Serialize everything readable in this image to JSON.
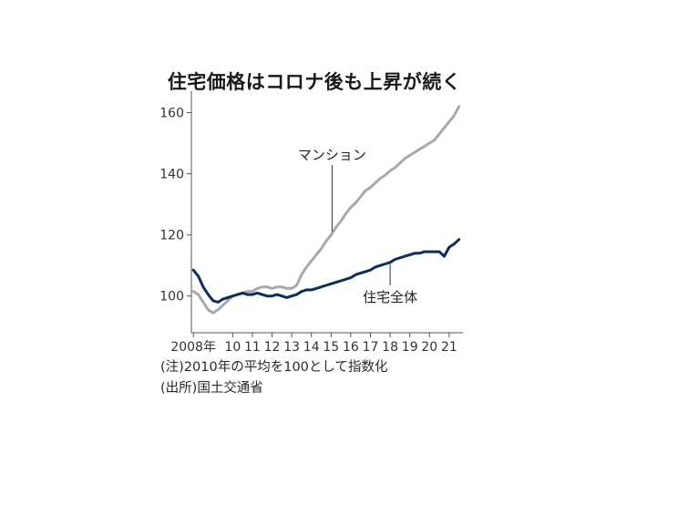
{
  "chart_data": {
    "type": "line",
    "title": "住宅価格はコロナ後も上昇が続く",
    "xlabel": "",
    "ylabel": "",
    "x_tick_labels": [
      "2008年",
      "10",
      "11",
      "12",
      "13",
      "14",
      "15",
      "16",
      "17",
      "18",
      "19",
      "20",
      "21"
    ],
    "x_tick_years": [
      2008,
      2010,
      2011,
      2012,
      2013,
      2014,
      2015,
      2016,
      2017,
      2018,
      2019,
      2020,
      2021
    ],
    "xlim": [
      2007.9,
      2021.7
    ],
    "ylim": [
      88,
      167
    ],
    "y_ticks": [
      100,
      120,
      140,
      160
    ],
    "grid": false,
    "legend": "none",
    "series": [
      {
        "name": "マンション",
        "color": "#a8a8b3",
        "x": [
          2008.0,
          2008.25,
          2008.5,
          2008.75,
          2009.0,
          2009.25,
          2009.5,
          2009.75,
          2010.0,
          2010.25,
          2010.5,
          2010.75,
          2011.0,
          2011.25,
          2011.5,
          2011.75,
          2012.0,
          2012.25,
          2012.5,
          2012.75,
          2013.0,
          2013.25,
          2013.5,
          2013.75,
          2014.0,
          2014.25,
          2014.5,
          2014.75,
          2015.0,
          2015.25,
          2015.5,
          2015.75,
          2016.0,
          2016.25,
          2016.5,
          2016.75,
          2017.0,
          2017.25,
          2017.5,
          2017.75,
          2018.0,
          2018.25,
          2018.5,
          2018.75,
          2019.0,
          2019.25,
          2019.5,
          2019.75,
          2020.0,
          2020.25,
          2020.5,
          2020.75,
          2021.0,
          2021.25,
          2021.5
        ],
        "values": [
          101.5,
          100.5,
          98,
          95.5,
          94.5,
          95.5,
          97,
          98.5,
          100,
          100.5,
          101,
          101.5,
          101.5,
          102.5,
          103,
          103,
          102.5,
          103,
          103,
          102.5,
          102.5,
          103.5,
          107,
          109.5,
          111.5,
          113.5,
          115.5,
          118,
          120,
          122.5,
          124.5,
          127,
          129,
          130.5,
          132.5,
          134.5,
          135.5,
          137,
          138.5,
          139.5,
          141,
          142,
          143.5,
          145,
          146,
          147,
          148,
          149,
          150,
          151,
          153,
          155,
          157,
          159,
          162
        ]
      },
      {
        "name": "住宅全体",
        "color": "#0d2f5a",
        "x": [
          2008.0,
          2008.25,
          2008.5,
          2008.75,
          2009.0,
          2009.25,
          2009.5,
          2009.75,
          2010.0,
          2010.25,
          2010.5,
          2010.75,
          2011.0,
          2011.25,
          2011.5,
          2011.75,
          2012.0,
          2012.25,
          2012.5,
          2012.75,
          2013.0,
          2013.25,
          2013.5,
          2013.75,
          2014.0,
          2014.25,
          2014.5,
          2014.75,
          2015.0,
          2015.25,
          2015.5,
          2015.75,
          2016.0,
          2016.25,
          2016.5,
          2016.75,
          2017.0,
          2017.25,
          2017.5,
          2017.75,
          2018.0,
          2018.25,
          2018.5,
          2018.75,
          2019.0,
          2019.25,
          2019.5,
          2019.75,
          2020.0,
          2020.25,
          2020.5,
          2020.75,
          2021.0,
          2021.25,
          2021.5
        ],
        "values": [
          108.5,
          106.5,
          103,
          100.5,
          98.5,
          98,
          99,
          99.5,
          100,
          100.5,
          101,
          100.5,
          100.5,
          101,
          100.5,
          100,
          100,
          100.5,
          100,
          99.5,
          100,
          100.5,
          101.5,
          102,
          102,
          102.5,
          103,
          103.5,
          104,
          104.5,
          105,
          105.5,
          106,
          107,
          107.5,
          108,
          108.5,
          109.5,
          110,
          110.5,
          111,
          112,
          112.5,
          113,
          113.5,
          114,
          114,
          114.5,
          114.5,
          114.5,
          114.5,
          113,
          116,
          117,
          118.5
        ]
      }
    ],
    "annotations": [
      {
        "text": "マンション",
        "series": 0,
        "x": 2015.05
      },
      {
        "text": "住宅全体",
        "series": 1,
        "x": 2018.0
      }
    ],
    "notes": [
      "(注)2010年の平均を100として指数化",
      "(出所)国土交通省"
    ]
  }
}
